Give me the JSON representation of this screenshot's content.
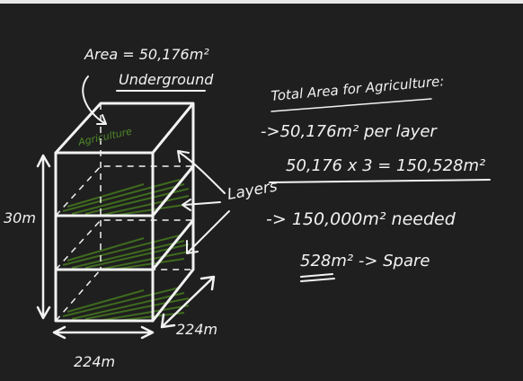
{
  "diagram": {
    "box_labels": {
      "area": "Area = 50,176m²",
      "underground": "Underground",
      "agriculture": "Agriculture",
      "height": "30m",
      "layers": "Layers",
      "depth": "224m",
      "width": "224m"
    },
    "notes": {
      "title": "Total Area for Agriculture:",
      "lines": [
        "->50,176m² per layer",
        "50,176 x 3 = 150,528m²",
        "-> 150,000m² needed",
        "528m² -> Spare"
      ]
    }
  }
}
